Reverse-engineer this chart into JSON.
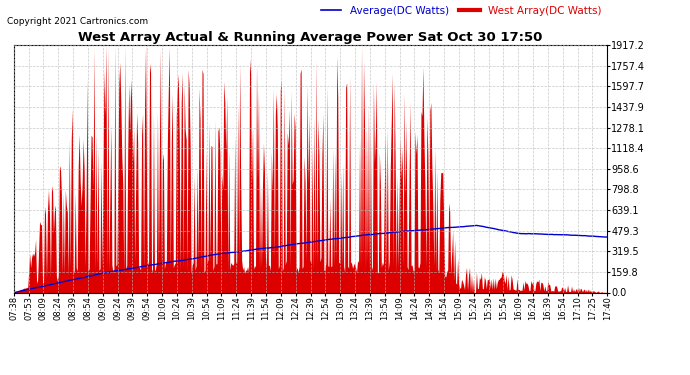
{
  "title": "West Array Actual & Running Average Power Sat Oct 30 17:50",
  "copyright": "Copyright 2021 Cartronics.com",
  "legend_avg": "Average(DC Watts)",
  "legend_west": "West Array(DC Watts)",
  "y_max": 1917.2,
  "y_min": 0.0,
  "y_ticks": [
    0.0,
    159.8,
    319.5,
    479.3,
    639.1,
    798.8,
    958.6,
    1118.4,
    1278.1,
    1437.9,
    1597.7,
    1757.4,
    1917.2
  ],
  "bar_color": "#dd0000",
  "avg_color": "#0000cc",
  "background_color": "#ffffff",
  "grid_color": "#bbbbbb",
  "title_color": "#000000",
  "copyright_color": "#000000",
  "legend_avg_color": "#0000cc",
  "legend_west_color": "#dd0000",
  "x_tick_labels": [
    "07:38",
    "07:53",
    "08:09",
    "08:24",
    "08:39",
    "08:54",
    "09:09",
    "09:24",
    "09:39",
    "09:54",
    "10:09",
    "10:24",
    "10:39",
    "10:54",
    "11:09",
    "11:24",
    "11:39",
    "11:54",
    "12:09",
    "12:24",
    "12:39",
    "12:54",
    "13:09",
    "13:24",
    "13:39",
    "13:54",
    "14:09",
    "14:24",
    "14:39",
    "14:54",
    "15:09",
    "15:24",
    "15:39",
    "15:54",
    "16:09",
    "16:24",
    "16:39",
    "16:54",
    "17:10",
    "17:25",
    "17:40"
  ]
}
